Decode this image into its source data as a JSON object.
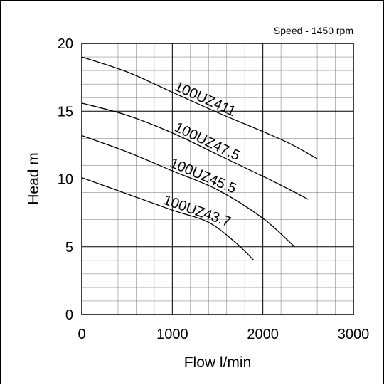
{
  "chart_data": {
    "type": "line",
    "annotation": "Speed - 1450 rpm",
    "xlabel": "Flow l/min",
    "ylabel": "Head m",
    "xlim": [
      0,
      3000
    ],
    "ylim": [
      0,
      20
    ],
    "xticks": [
      0,
      1000,
      2000,
      3000
    ],
    "yticks": [
      0,
      5,
      10,
      15,
      20
    ],
    "minor_x_step": 200,
    "minor_y_step": 1,
    "grid": true,
    "line_color": "#000000",
    "series": [
      {
        "name": "100UZ411",
        "points": [
          [
            0,
            19.0
          ],
          [
            500,
            17.9
          ],
          [
            1000,
            16.4
          ],
          [
            1500,
            14.9
          ],
          [
            2000,
            13.5
          ],
          [
            2300,
            12.6
          ],
          [
            2600,
            11.5
          ]
        ]
      },
      {
        "name": "100UZ47.5",
        "points": [
          [
            0,
            15.6
          ],
          [
            500,
            14.7
          ],
          [
            1000,
            13.4
          ],
          [
            1500,
            11.8
          ],
          [
            2000,
            10.2
          ],
          [
            2300,
            9.2
          ],
          [
            2500,
            8.5
          ]
        ]
      },
      {
        "name": "100UZ45.5",
        "points": [
          [
            0,
            13.2
          ],
          [
            500,
            12.0
          ],
          [
            1000,
            10.6
          ],
          [
            1500,
            9.2
          ],
          [
            2000,
            7.1
          ],
          [
            2350,
            5.0
          ]
        ]
      },
      {
        "name": "100UZ43.7",
        "points": [
          [
            0,
            10.1
          ],
          [
            500,
            8.9
          ],
          [
            1000,
            7.7
          ],
          [
            1400,
            6.8
          ],
          [
            1700,
            5.3
          ],
          [
            1900,
            4.0
          ]
        ]
      }
    ]
  }
}
